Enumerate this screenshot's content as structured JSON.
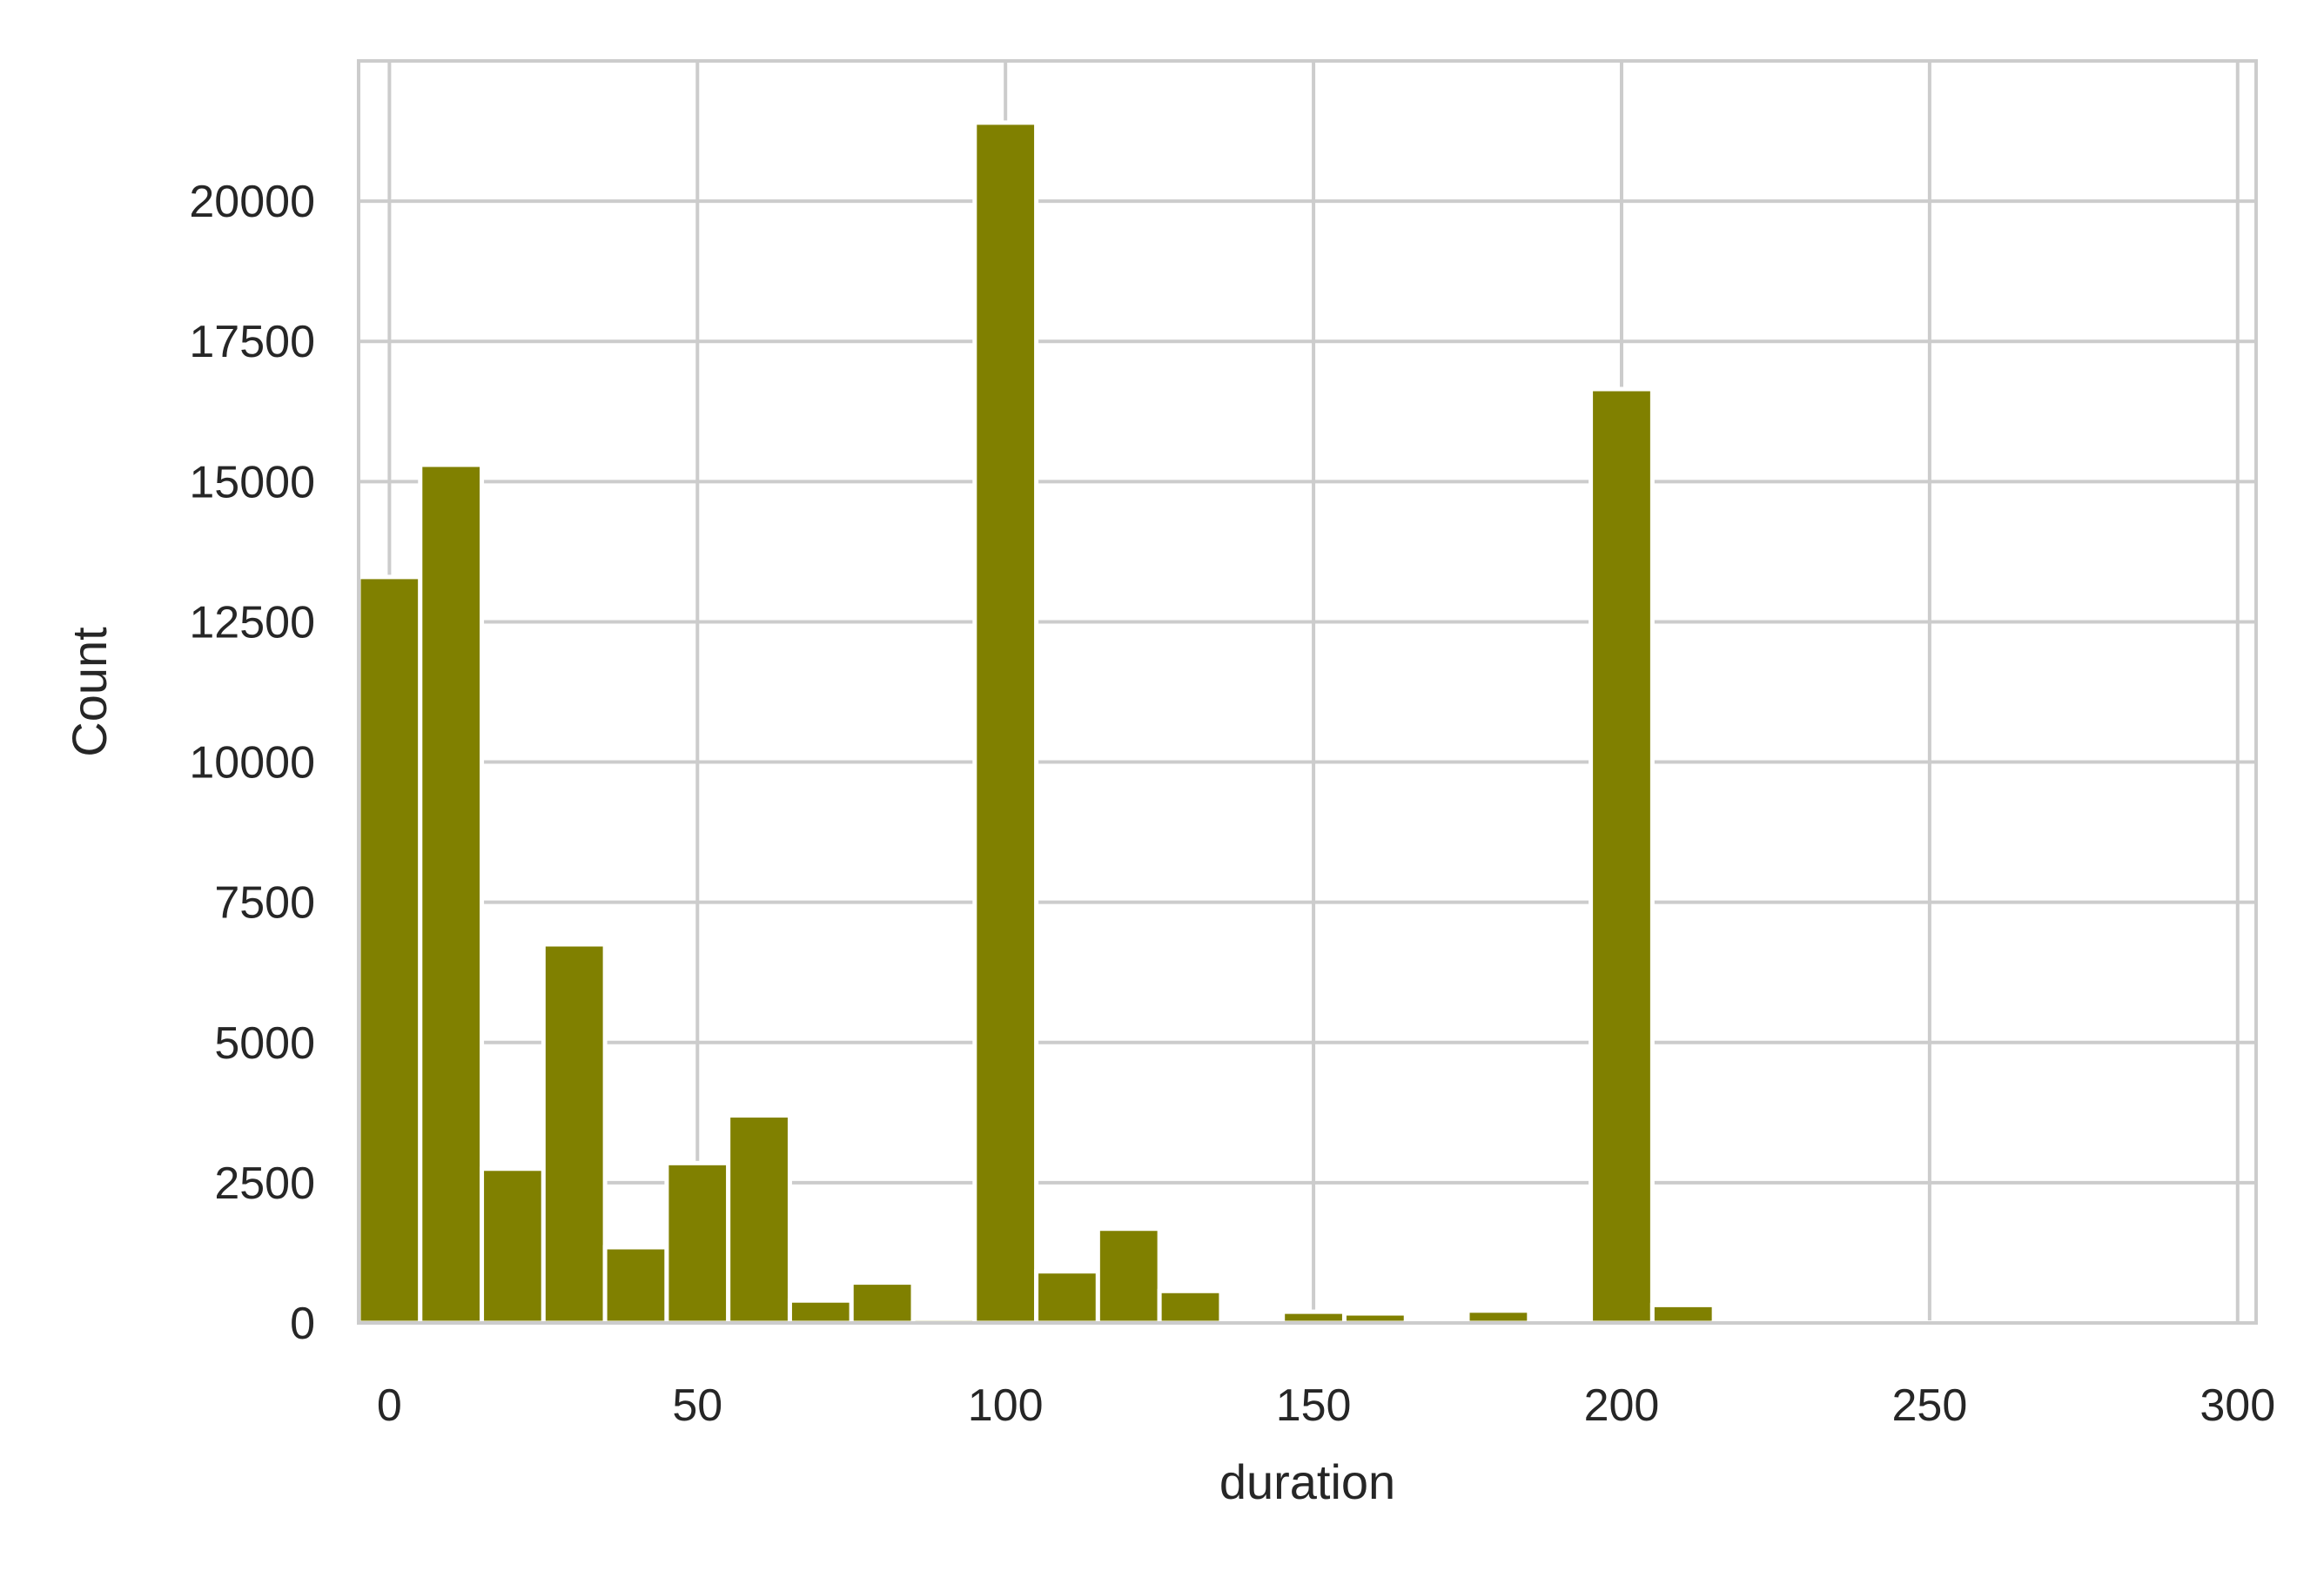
{
  "chart_data": {
    "type": "bar",
    "title": "",
    "xlabel": "duration",
    "ylabel": "Count",
    "xlim": [
      -5,
      303
    ],
    "ylim": [
      0,
      22500
    ],
    "xticks": [
      0,
      50,
      100,
      150,
      200,
      250,
      300
    ],
    "yticks": [
      0,
      2500,
      5000,
      7500,
      10000,
      12500,
      15000,
      17500,
      20000
    ],
    "grid": true,
    "bar_color": "#808000",
    "bin_width": 10,
    "bins": [
      {
        "x0": -5,
        "x1": 5,
        "count": 13300
      },
      {
        "x0": 5,
        "x1": 15,
        "count": 15300
      },
      {
        "x0": 15,
        "x1": 25,
        "count": 2750
      },
      {
        "x0": 25,
        "x1": 35,
        "count": 6750
      },
      {
        "x0": 35,
        "x1": 45,
        "count": 1350
      },
      {
        "x0": 45,
        "x1": 55,
        "count": 2850
      },
      {
        "x0": 55,
        "x1": 65,
        "count": 3700
      },
      {
        "x0": 65,
        "x1": 75,
        "count": 400
      },
      {
        "x0": 75,
        "x1": 85,
        "count": 720
      },
      {
        "x0": 85,
        "x1": 95,
        "count": 80
      },
      {
        "x0": 95,
        "x1": 105,
        "count": 21400
      },
      {
        "x0": 105,
        "x1": 115,
        "count": 920
      },
      {
        "x0": 115,
        "x1": 125,
        "count": 1680
      },
      {
        "x0": 125,
        "x1": 135,
        "count": 570
      },
      {
        "x0": 135,
        "x1": 145,
        "count": 0
      },
      {
        "x0": 145,
        "x1": 155,
        "count": 200
      },
      {
        "x0": 155,
        "x1": 165,
        "count": 170
      },
      {
        "x0": 165,
        "x1": 175,
        "count": 10
      },
      {
        "x0": 175,
        "x1": 185,
        "count": 220
      },
      {
        "x0": 185,
        "x1": 195,
        "count": 5
      },
      {
        "x0": 195,
        "x1": 205,
        "count": 16650
      },
      {
        "x0": 205,
        "x1": 215,
        "count": 320
      },
      {
        "x0": 215,
        "x1": 225,
        "count": 10
      },
      {
        "x0": 225,
        "x1": 235,
        "count": 50
      },
      {
        "x0": 235,
        "x1": 245,
        "count": 10
      },
      {
        "x0": 245,
        "x1": 255,
        "count": 5
      },
      {
        "x0": 255,
        "x1": 265,
        "count": 5
      },
      {
        "x0": 265,
        "x1": 275,
        "count": 5
      },
      {
        "x0": 275,
        "x1": 285,
        "count": 5
      },
      {
        "x0": 285,
        "x1": 295,
        "count": 5
      }
    ]
  }
}
